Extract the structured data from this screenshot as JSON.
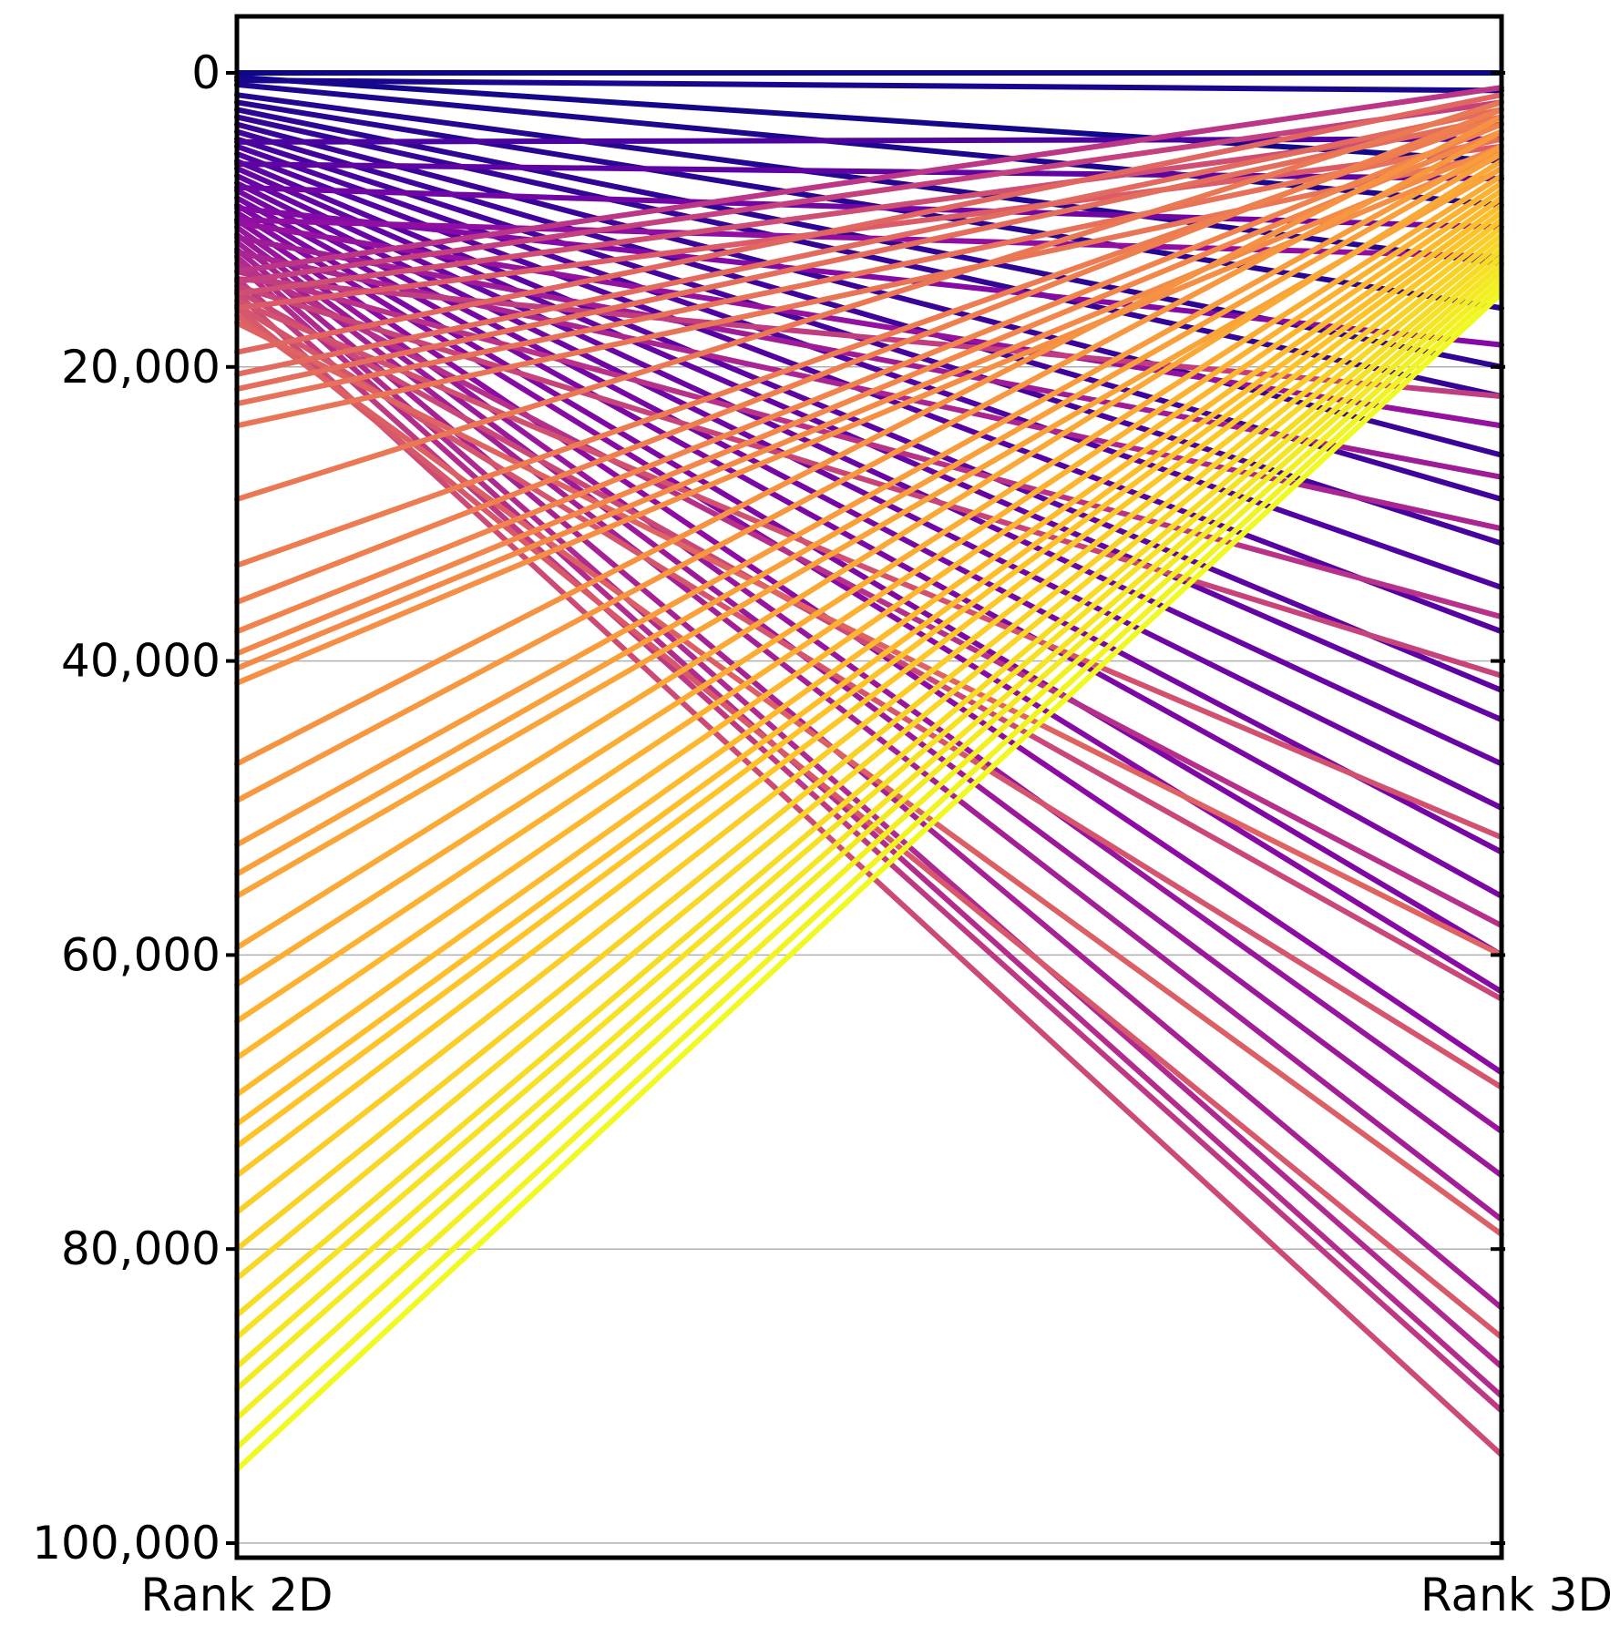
{
  "chart_data": {
    "type": "line",
    "subtype": "parallel-coordinates (slope chart)",
    "categories": [
      "Rank 2D",
      "Rank 3D"
    ],
    "ylim": [
      0,
      100000
    ],
    "y_inverted": true,
    "y_ticks": [
      0,
      20000,
      40000,
      60000,
      80000,
      100000
    ],
    "y_tick_labels": [
      "0",
      "20,000",
      "40,000",
      "60,000",
      "80,000",
      "100,000"
    ],
    "grid": "horizontal",
    "legend": "none",
    "colormap": "plasma",
    "colormap_stops": [
      "#0d0887",
      "#5302a3",
      "#8b0aa5",
      "#b83289",
      "#db5c68",
      "#f48849",
      "#febd2a",
      "#f0f921"
    ],
    "series": [
      {
        "values": [
          0,
          0
        ]
      },
      {
        "values": [
          500,
          1200
        ]
      },
      {
        "values": [
          300,
          6000
        ]
      },
      {
        "values": [
          800,
          9000
        ]
      },
      {
        "values": [
          1500,
          13000
        ]
      },
      {
        "values": [
          2000,
          16000
        ]
      },
      {
        "values": [
          2500,
          20000
        ]
      },
      {
        "values": [
          3000,
          22000
        ]
      },
      {
        "values": [
          3500,
          26000
        ]
      },
      {
        "values": [
          4000,
          29000
        ]
      },
      {
        "values": [
          4500,
          32000
        ]
      },
      {
        "values": [
          5000,
          35000
        ]
      },
      {
        "values": [
          5500,
          38000
        ]
      },
      {
        "values": [
          6000,
          42000
        ]
      },
      {
        "values": [
          6500,
          44000
        ]
      },
      {
        "values": [
          7000,
          47000
        ]
      },
      {
        "values": [
          7500,
          50000
        ]
      },
      {
        "values": [
          8000,
          53000
        ]
      },
      {
        "values": [
          8500,
          56000
        ]
      },
      {
        "values": [
          9000,
          60000
        ]
      },
      {
        "values": [
          9500,
          62500
        ]
      },
      {
        "values": [
          10000,
          68000
        ]
      },
      {
        "values": [
          10500,
          72000
        ]
      },
      {
        "values": [
          11000,
          75000
        ]
      },
      {
        "values": [
          11500,
          78000
        ]
      },
      {
        "values": [
          12000,
          84000
        ]
      },
      {
        "values": [
          12500,
          88000
        ]
      },
      {
        "values": [
          13000,
          90000
        ]
      },
      {
        "values": [
          14000,
          91000
        ]
      },
      {
        "values": [
          15000,
          94000
        ]
      },
      {
        "values": [
          4700,
          4500
        ]
      },
      {
        "values": [
          6200,
          7200
        ]
      },
      {
        "values": [
          7800,
          10500
        ]
      },
      {
        "values": [
          9200,
          18500
        ]
      },
      {
        "values": [
          10200,
          24000
        ]
      },
      {
        "values": [
          11200,
          27500
        ]
      },
      {
        "values": [
          12200,
          31000
        ]
      },
      {
        "values": [
          13500,
          37000
        ]
      },
      {
        "values": [
          14500,
          41000
        ]
      },
      {
        "values": [
          15500,
          52000
        ]
      },
      {
        "values": [
          13000,
          58000
        ]
      },
      {
        "values": [
          14800,
          63000
        ]
      },
      {
        "values": [
          15800,
          69000
        ]
      },
      {
        "values": [
          16500,
          79000
        ]
      },
      {
        "values": [
          16000,
          86000
        ]
      },
      {
        "values": [
          13500,
          1000
        ]
      },
      {
        "values": [
          14200,
          2000
        ]
      },
      {
        "values": [
          15000,
          3500
        ]
      },
      {
        "values": [
          16000,
          5000
        ]
      },
      {
        "values": [
          19000,
          1500
        ]
      },
      {
        "values": [
          20500,
          2500
        ]
      },
      {
        "values": [
          21500,
          3000
        ]
      },
      {
        "values": [
          22500,
          4500
        ]
      },
      {
        "values": [
          24000,
          5500
        ]
      },
      {
        "values": [
          29000,
          2000
        ]
      },
      {
        "values": [
          33500,
          3000
        ]
      },
      {
        "values": [
          36000,
          2500
        ]
      },
      {
        "values": [
          38000,
          3500
        ]
      },
      {
        "values": [
          39500,
          4000
        ]
      },
      {
        "values": [
          40500,
          5000
        ]
      },
      {
        "values": [
          41500,
          5500
        ]
      },
      {
        "values": [
          47000,
          3000
        ]
      },
      {
        "values": [
          49500,
          4000
        ]
      },
      {
        "values": [
          52500,
          5000
        ]
      },
      {
        "values": [
          54500,
          5500
        ]
      },
      {
        "values": [
          56000,
          6500
        ]
      },
      {
        "values": [
          59500,
          6000
        ]
      },
      {
        "values": [
          62000,
          7000
        ]
      },
      {
        "values": [
          64500,
          7500
        ]
      },
      {
        "values": [
          67000,
          8000
        ]
      },
      {
        "values": [
          69500,
          8500
        ]
      },
      {
        "values": [
          71500,
          9000
        ]
      },
      {
        "values": [
          73000,
          9500
        ]
      },
      {
        "values": [
          75000,
          10000
        ]
      },
      {
        "values": [
          77500,
          10500
        ]
      },
      {
        "values": [
          80000,
          11000
        ]
      },
      {
        "values": [
          82000,
          11500
        ]
      },
      {
        "values": [
          84500,
          12000
        ]
      },
      {
        "values": [
          86000,
          12500
        ]
      },
      {
        "values": [
          88000,
          13000
        ]
      },
      {
        "values": [
          89500,
          13500
        ]
      },
      {
        "values": [
          91500,
          14000
        ]
      },
      {
        "values": [
          93500,
          14500
        ]
      },
      {
        "values": [
          95000,
          15000
        ]
      },
      {
        "values": [
          10000,
          12500
        ]
      },
      {
        "values": [
          14000,
          22000
        ]
      },
      {
        "values": [
          17000,
          60000
        ]
      }
    ]
  }
}
